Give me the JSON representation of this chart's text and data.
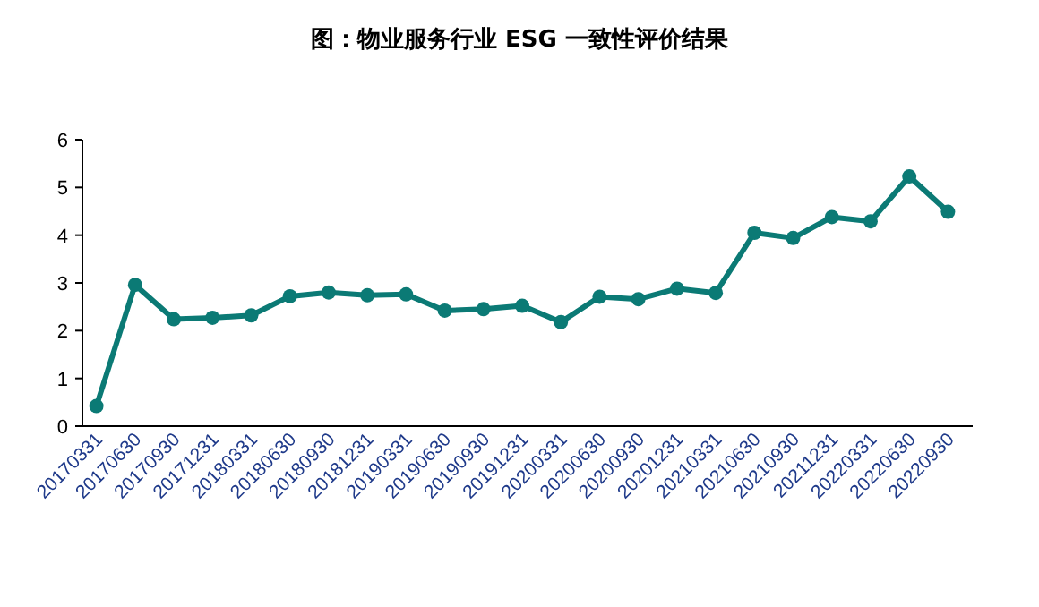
{
  "chart_data": {
    "type": "line",
    "title": "图：物业服务行业 ESG 一致性评价结果",
    "categories": [
      "20170331",
      "20170630",
      "20170930",
      "20171231",
      "20180331",
      "20180630",
      "20180930",
      "20181231",
      "20190331",
      "20190630",
      "20190930",
      "20191231",
      "20200331",
      "20200630",
      "20200930",
      "20201231",
      "20210331",
      "20210630",
      "20210930",
      "20211231",
      "20220331",
      "20220630",
      "20220930"
    ],
    "series": [
      {
        "color": "#0b7a75",
        "values": [
          0.42,
          2.96,
          2.24,
          2.27,
          2.32,
          2.72,
          2.8,
          2.74,
          2.76,
          2.42,
          2.45,
          2.52,
          2.18,
          2.71,
          2.66,
          2.88,
          2.79,
          4.05,
          3.94,
          4.38,
          4.29,
          5.23,
          4.49
        ]
      }
    ],
    "ylim": [
      0,
      6
    ],
    "yticks": [
      0,
      1,
      2,
      3,
      4,
      5,
      6
    ],
    "marker": "circle",
    "line_style": "solid"
  }
}
